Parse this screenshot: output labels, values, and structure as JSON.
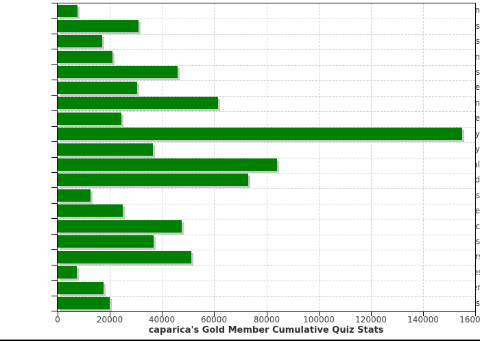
{
  "chart_data": {
    "type": "bar",
    "orientation": "horizontal",
    "title": "caparica's Gold Member Cumulative Quiz Stats",
    "categories": [
      "Religion",
      "Hobbies",
      "Celebrities",
      "Television",
      "Humanities",
      "People",
      "For_Children",
      "Literature",
      "Geography",
      "History",
      "General",
      "World",
      "Sports",
      "Science",
      "Music",
      "Movies",
      "Brain_Teasers",
      "Video_Games",
      "Entertainment",
      "Animals"
    ],
    "values": [
      7600,
      31000,
      17000,
      21000,
      46000,
      30500,
      61500,
      24500,
      155000,
      36400,
      84000,
      73000,
      12500,
      25000,
      47500,
      36700,
      51300,
      7300,
      17500,
      19900
    ],
    "xlabel": "",
    "ylabel": "",
    "xlim": [
      0,
      160000
    ],
    "x_tick_labels": [
      "0",
      "20000",
      "40000",
      "60000",
      "80000",
      "100000",
      "120000",
      "140000",
      "160000"
    ],
    "x_tick_values": [
      0,
      20000,
      40000,
      60000,
      80000,
      100000,
      120000,
      140000,
      160000
    ],
    "grid": "dashed, vertical at x ticks and horizontal at category boundaries",
    "legend": "none",
    "colors": {
      "bar": "#008000",
      "bar_shadow": "#c8c8c8",
      "gridline": "#c9d0d5",
      "axis": "#000000",
      "tick_text": "#3b3b3b",
      "title_text": "#2e2e2e",
      "background": "#ffffff"
    }
  }
}
